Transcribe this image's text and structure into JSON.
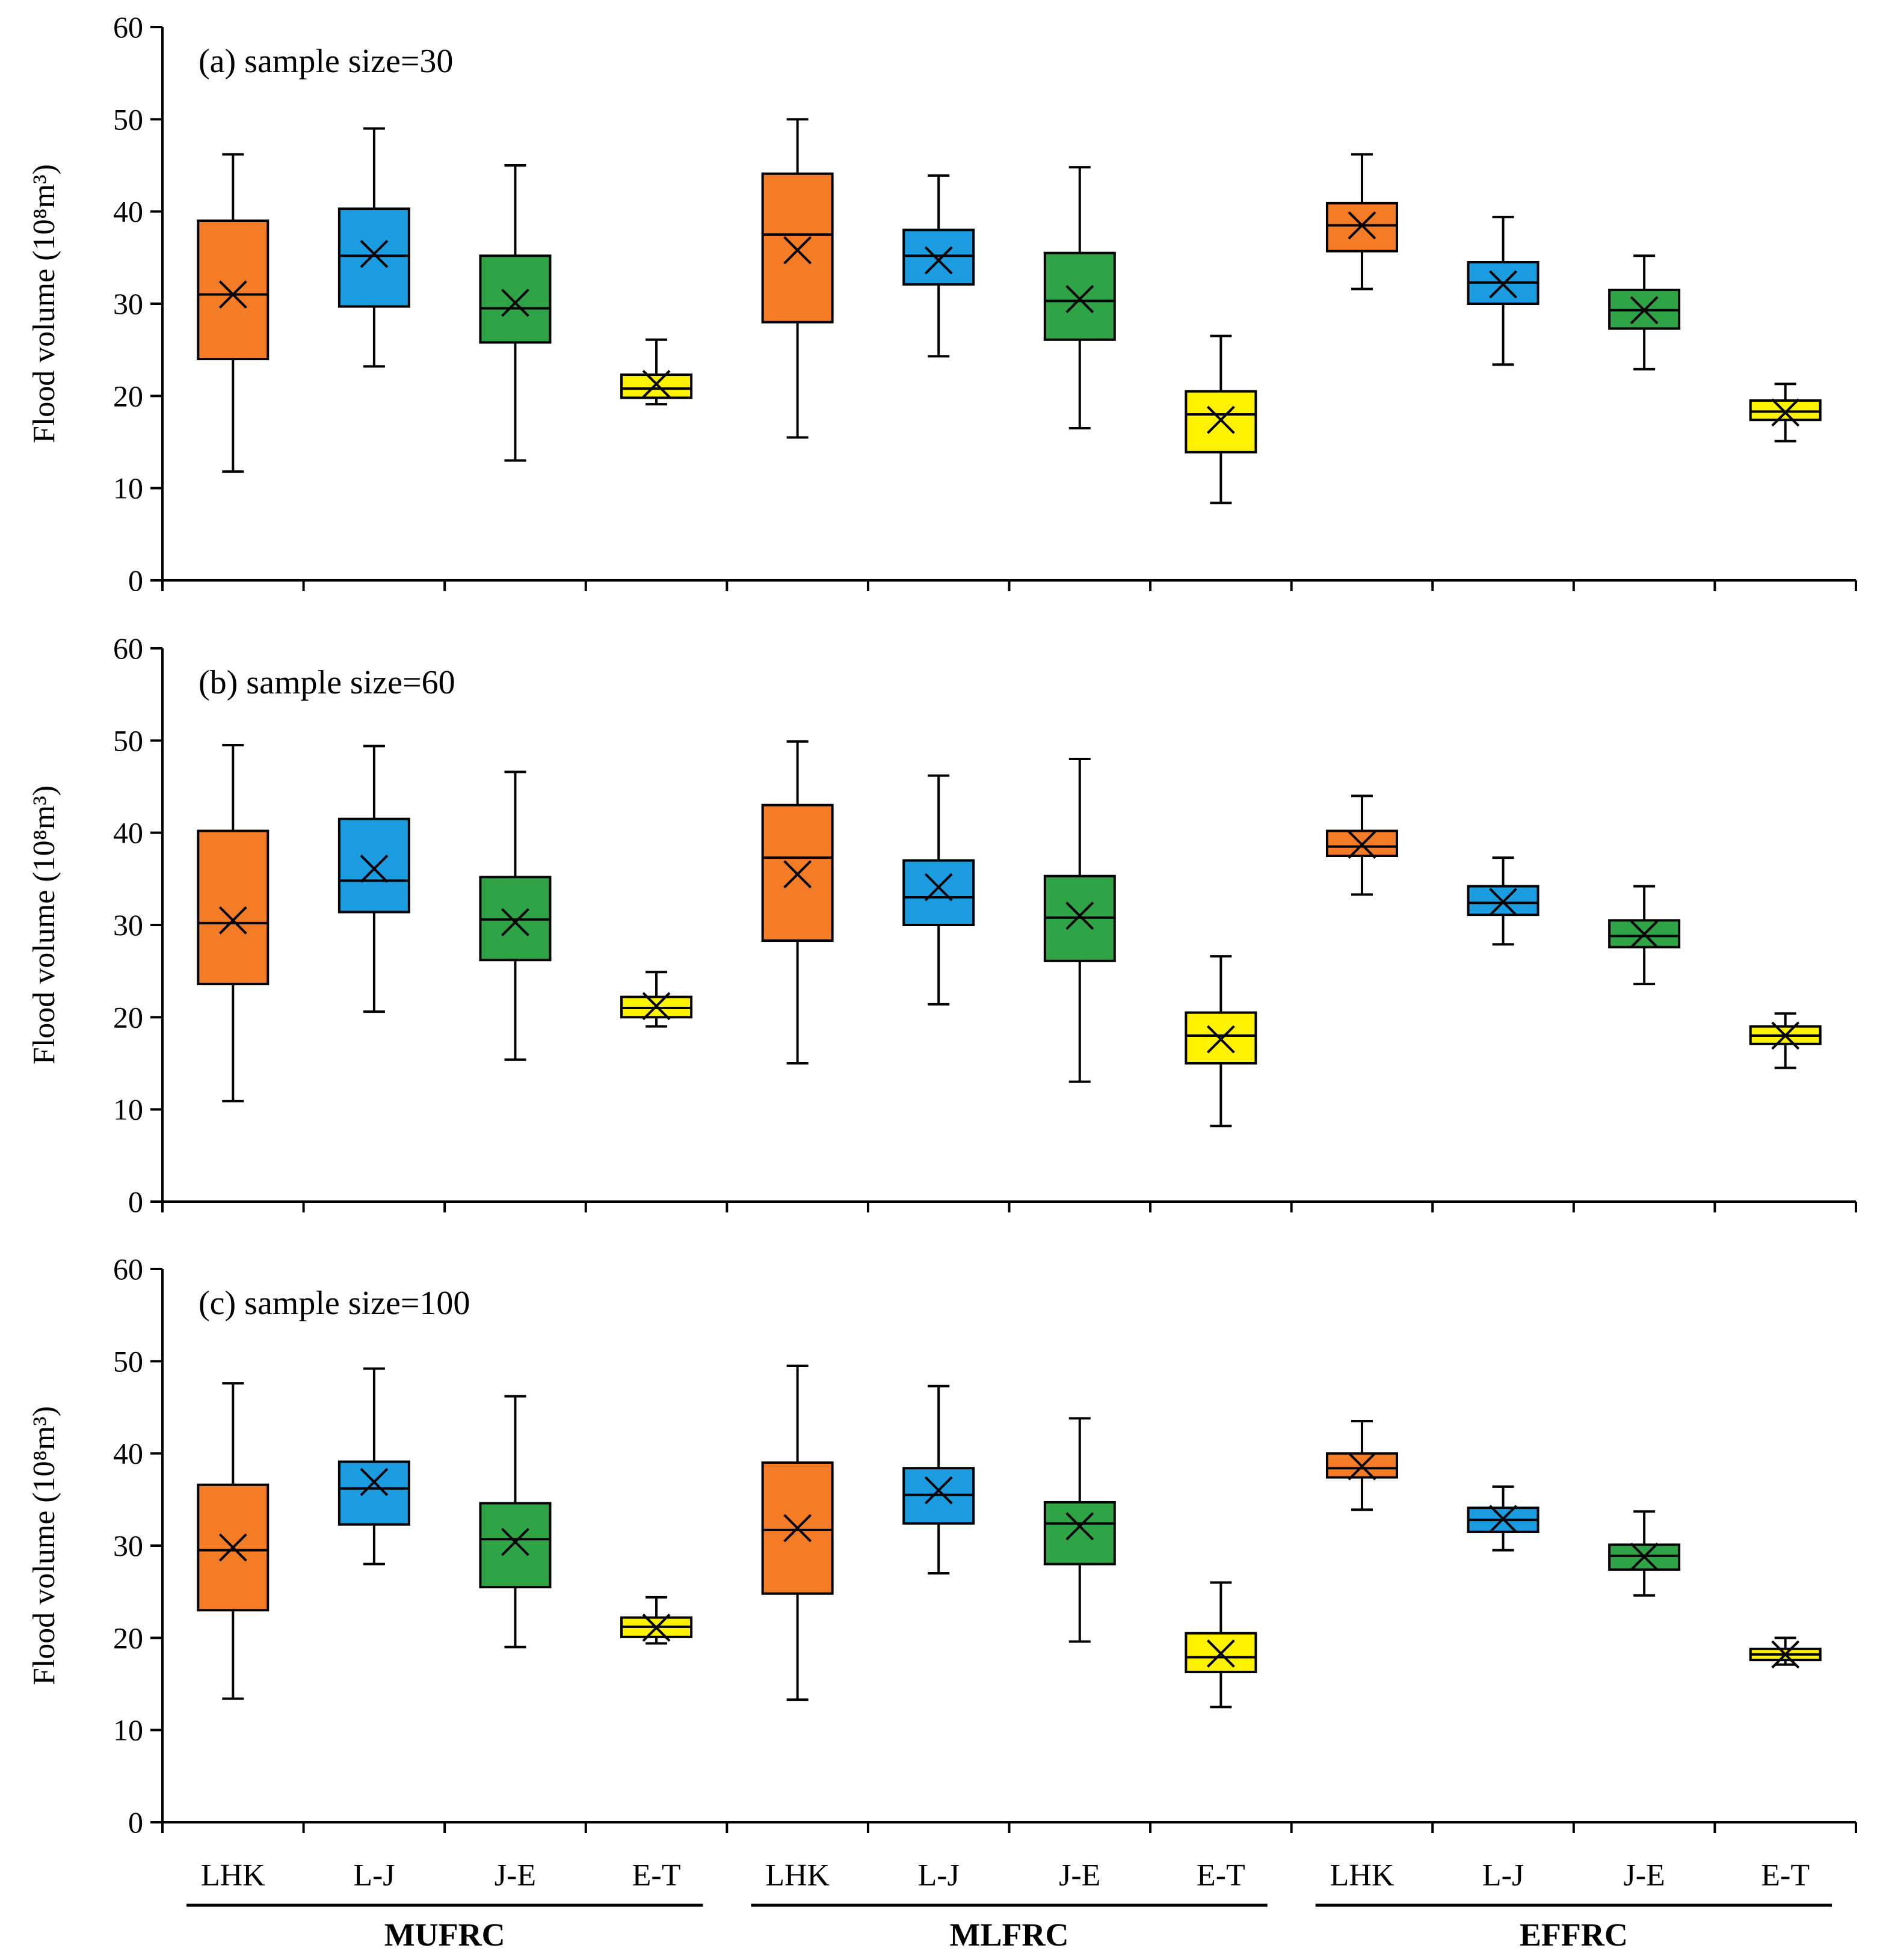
{
  "chart_data": [
    {
      "type": "box",
      "title": "(a) sample size=30",
      "ylabel": "Flood volume (10⁸m³)",
      "ylim": [
        0,
        60
      ],
      "yticks": [
        0,
        10,
        20,
        30,
        40,
        50,
        60
      ],
      "categories": [
        "LHK",
        "L-J",
        "J-E",
        "E-T",
        "LHK",
        "L-J",
        "J-E",
        "E-T",
        "LHK",
        "L-J",
        "J-E",
        "E-T"
      ],
      "groups": [
        {
          "name": "MUFRC",
          "span": [
            0,
            3
          ]
        },
        {
          "name": "MLFRC",
          "span": [
            4,
            7
          ]
        },
        {
          "name": "EFFRC",
          "span": [
            8,
            11
          ]
        }
      ],
      "colors": [
        "#F57C26",
        "#1B9BE0",
        "#2EA446",
        "#FFF200"
      ],
      "boxes": [
        {
          "min": 11.8,
          "q1": 24.0,
          "median": 31.0,
          "q3": 39.0,
          "max": 46.2,
          "mean": 31.0
        },
        {
          "min": 23.2,
          "q1": 29.7,
          "median": 35.2,
          "q3": 40.3,
          "max": 49.0,
          "mean": 35.4
        },
        {
          "min": 13.0,
          "q1": 25.8,
          "median": 29.5,
          "q3": 35.2,
          "max": 45.0,
          "mean": 30.1
        },
        {
          "min": 19.1,
          "q1": 19.8,
          "median": 20.8,
          "q3": 22.3,
          "max": 26.1,
          "mean": 21.3
        },
        {
          "min": 15.5,
          "q1": 28.0,
          "median": 37.5,
          "q3": 44.1,
          "max": 50.0,
          "mean": 35.8
        },
        {
          "min": 24.3,
          "q1": 32.1,
          "median": 35.2,
          "q3": 38.0,
          "max": 43.9,
          "mean": 34.7
        },
        {
          "min": 16.5,
          "q1": 26.1,
          "median": 30.3,
          "q3": 35.5,
          "max": 44.8,
          "mean": 30.5
        },
        {
          "min": 8.4,
          "q1": 13.9,
          "median": 18.0,
          "q3": 20.5,
          "max": 26.5,
          "mean": 17.4
        },
        {
          "min": 31.6,
          "q1": 35.7,
          "median": 38.5,
          "q3": 40.9,
          "max": 46.2,
          "mean": 38.5
        },
        {
          "min": 23.4,
          "q1": 30.0,
          "median": 32.3,
          "q3": 34.5,
          "max": 39.4,
          "mean": 32.1
        },
        {
          "min": 22.9,
          "q1": 27.3,
          "median": 29.3,
          "q3": 31.5,
          "max": 35.2,
          "mean": 29.3
        },
        {
          "min": 15.1,
          "q1": 17.4,
          "median": 18.3,
          "q3": 19.5,
          "max": 21.3,
          "mean": 18.2
        }
      ]
    },
    {
      "type": "box",
      "title": "(b) sample size=60",
      "ylabel": "Flood volume (10⁸m³)",
      "ylim": [
        0,
        60
      ],
      "yticks": [
        0,
        10,
        20,
        30,
        40,
        50,
        60
      ],
      "categories": [
        "LHK",
        "L-J",
        "J-E",
        "E-T",
        "LHK",
        "L-J",
        "J-E",
        "E-T",
        "LHK",
        "L-J",
        "J-E",
        "E-T"
      ],
      "groups": [
        {
          "name": "MUFRC",
          "span": [
            0,
            3
          ]
        },
        {
          "name": "MLFRC",
          "span": [
            4,
            7
          ]
        },
        {
          "name": "EFFRC",
          "span": [
            8,
            11
          ]
        }
      ],
      "colors": [
        "#F57C26",
        "#1B9BE0",
        "#2EA446",
        "#FFF200"
      ],
      "boxes": [
        {
          "min": 10.9,
          "q1": 23.6,
          "median": 30.2,
          "q3": 40.2,
          "max": 49.5,
          "mean": 30.5
        },
        {
          "min": 20.6,
          "q1": 31.4,
          "median": 34.8,
          "q3": 41.5,
          "max": 49.4,
          "mean": 36.1
        },
        {
          "min": 15.4,
          "q1": 26.2,
          "median": 30.6,
          "q3": 35.2,
          "max": 46.6,
          "mean": 30.3
        },
        {
          "min": 19.0,
          "q1": 20.0,
          "median": 21.0,
          "q3": 22.2,
          "max": 24.9,
          "mean": 21.2
        },
        {
          "min": 15.0,
          "q1": 28.3,
          "median": 37.3,
          "q3": 43.0,
          "max": 49.9,
          "mean": 35.5
        },
        {
          "min": 21.4,
          "q1": 30.0,
          "median": 33.0,
          "q3": 37.0,
          "max": 46.2,
          "mean": 34.1
        },
        {
          "min": 13.0,
          "q1": 26.1,
          "median": 30.8,
          "q3": 35.3,
          "max": 48.0,
          "mean": 31.0
        },
        {
          "min": 8.2,
          "q1": 15.0,
          "median": 18.0,
          "q3": 20.5,
          "max": 26.6,
          "mean": 17.6
        },
        {
          "min": 33.3,
          "q1": 37.5,
          "median": 38.5,
          "q3": 40.2,
          "max": 44.0,
          "mean": 38.7
        },
        {
          "min": 27.9,
          "q1": 31.1,
          "median": 32.4,
          "q3": 34.2,
          "max": 37.3,
          "mean": 32.5
        },
        {
          "min": 23.6,
          "q1": 27.6,
          "median": 28.8,
          "q3": 30.5,
          "max": 34.2,
          "mean": 29.0
        },
        {
          "min": 14.5,
          "q1": 17.1,
          "median": 18.0,
          "q3": 19.0,
          "max": 20.4,
          "mean": 18.0
        }
      ]
    },
    {
      "type": "box",
      "title": "(c) sample size=100",
      "ylabel": "Flood volume (10⁸m³)",
      "ylim": [
        0,
        60
      ],
      "yticks": [
        0,
        10,
        20,
        30,
        40,
        50,
        60
      ],
      "categories": [
        "LHK",
        "L-J",
        "J-E",
        "E-T",
        "LHK",
        "L-J",
        "J-E",
        "E-T",
        "LHK",
        "L-J",
        "J-E",
        "E-T"
      ],
      "groups": [
        {
          "name": "MUFRC",
          "span": [
            0,
            3
          ]
        },
        {
          "name": "MLFRC",
          "span": [
            4,
            7
          ]
        },
        {
          "name": "EFFRC",
          "span": [
            8,
            11
          ]
        }
      ],
      "colors": [
        "#F57C26",
        "#1B9BE0",
        "#2EA446",
        "#FFF200"
      ],
      "boxes": [
        {
          "min": 13.4,
          "q1": 23.0,
          "median": 29.5,
          "q3": 36.6,
          "max": 47.6,
          "mean": 29.8
        },
        {
          "min": 28.0,
          "q1": 32.3,
          "median": 36.2,
          "q3": 39.1,
          "max": 49.2,
          "mean": 36.9
        },
        {
          "min": 19.0,
          "q1": 25.5,
          "median": 30.7,
          "q3": 34.6,
          "max": 46.2,
          "mean": 30.4
        },
        {
          "min": 19.4,
          "q1": 20.1,
          "median": 21.2,
          "q3": 22.2,
          "max": 24.4,
          "mean": 21.1
        },
        {
          "min": 13.3,
          "q1": 24.8,
          "median": 31.7,
          "q3": 39.0,
          "max": 49.5,
          "mean": 31.9
        },
        {
          "min": 27.0,
          "q1": 32.4,
          "median": 35.5,
          "q3": 38.4,
          "max": 47.3,
          "mean": 36.0
        },
        {
          "min": 19.6,
          "q1": 28.0,
          "median": 32.4,
          "q3": 34.7,
          "max": 43.8,
          "mean": 32.1
        },
        {
          "min": 12.5,
          "q1": 16.3,
          "median": 17.9,
          "q3": 20.5,
          "max": 26.0,
          "mean": 18.3
        },
        {
          "min": 33.9,
          "q1": 37.4,
          "median": 38.4,
          "q3": 40.0,
          "max": 43.5,
          "mean": 38.6
        },
        {
          "min": 29.5,
          "q1": 31.5,
          "median": 32.8,
          "q3": 34.1,
          "max": 36.4,
          "mean": 32.9
        },
        {
          "min": 24.6,
          "q1": 27.4,
          "median": 28.9,
          "q3": 30.1,
          "max": 33.7,
          "mean": 28.8
        },
        {
          "min": 17.1,
          "q1": 17.6,
          "median": 18.2,
          "q3": 18.8,
          "max": 20.0,
          "mean": 18.2
        }
      ]
    }
  ]
}
